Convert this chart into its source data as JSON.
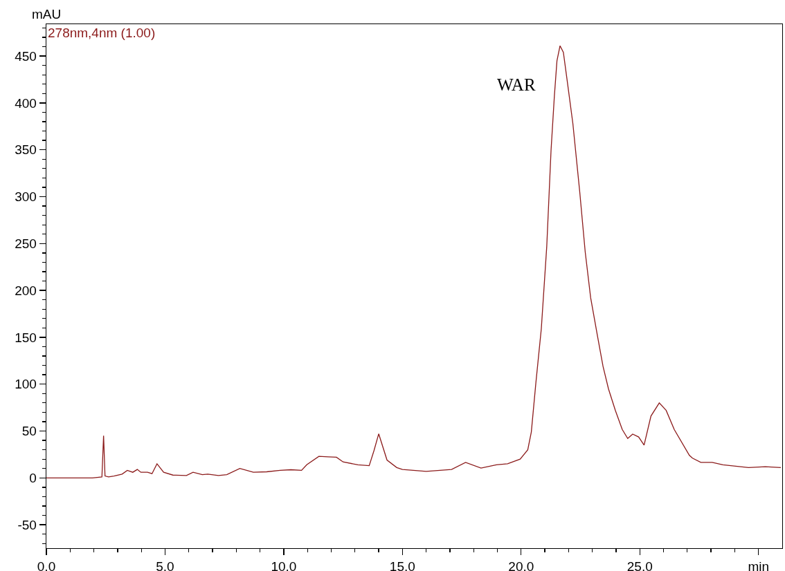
{
  "chart_data": {
    "type": "line",
    "ylabel": "mAU",
    "annotations": [
      "WAR"
    ],
    "series": [
      {
        "name": "278nm,4nm (1.00)",
        "color": "#8b1a1a",
        "x": [
          0,
          1.94,
          2.34,
          2.41,
          2.47,
          2.62,
          2.85,
          3.19,
          3.41,
          3.64,
          3.83,
          3.98,
          4.26,
          4.45,
          4.66,
          4.94,
          5.33,
          5.9,
          6.18,
          6.57,
          6.8,
          7.25,
          7.6,
          8.15,
          8.72,
          9.28,
          9.85,
          10.3,
          10.75,
          10.97,
          11.48,
          11.88,
          12.22,
          12.5,
          13.12,
          13.6,
          13.8,
          14.0,
          14.35,
          14.76,
          15.0,
          16.0,
          17.07,
          17.66,
          18.31,
          18.96,
          19.43,
          19.96,
          20.28,
          20.43,
          20.62,
          20.85,
          21.08,
          21.26,
          21.4,
          21.51,
          21.64,
          21.78,
          21.95,
          22.18,
          22.47,
          22.7,
          22.93,
          23.22,
          23.45,
          23.68,
          23.97,
          24.26,
          24.49,
          24.7,
          24.95,
          25.18,
          25.47,
          25.82,
          26.11,
          26.45,
          27.09,
          27.22,
          27.57,
          28.05,
          28.5,
          29.58,
          30.29,
          30.94
        ],
        "values": [
          0,
          0,
          1,
          45,
          2,
          1,
          2,
          4,
          8,
          6,
          9,
          6,
          6,
          4.5,
          15,
          6,
          3,
          2.5,
          6,
          3.5,
          4,
          2.5,
          3.5,
          10,
          6,
          6.5,
          8,
          8.7,
          8,
          14,
          23,
          22.5,
          22,
          17,
          14,
          13,
          29,
          47,
          19,
          11,
          9,
          7,
          9,
          16.5,
          10.5,
          14,
          15,
          20,
          30,
          49,
          101,
          159,
          247,
          349,
          407,
          445,
          461,
          454,
          422,
          378,
          305,
          241,
          192,
          151,
          119,
          95,
          72,
          51.6,
          42,
          46.7,
          43.7,
          35,
          66,
          80,
          72,
          51.6,
          24,
          21,
          16.5,
          16.5,
          14,
          11,
          12,
          11
        ]
      }
    ],
    "xlim": [
      0,
      31
    ],
    "xticks": [
      {
        "value": 0,
        "label": "0.0"
      },
      {
        "value": 1,
        "label": null
      },
      {
        "value": 2,
        "label": null
      },
      {
        "value": 3,
        "label": null
      },
      {
        "value": 4,
        "label": null
      },
      {
        "value": 5,
        "label": "5.0"
      },
      {
        "value": 6,
        "label": null
      },
      {
        "value": 7,
        "label": null
      },
      {
        "value": 8,
        "label": null
      },
      {
        "value": 9,
        "label": null
      },
      {
        "value": 10,
        "label": "10.0"
      },
      {
        "value": 11,
        "label": null
      },
      {
        "value": 12,
        "label": null
      },
      {
        "value": 13,
        "label": null
      },
      {
        "value": 14,
        "label": null
      },
      {
        "value": 15,
        "label": "15.0"
      },
      {
        "value": 16,
        "label": null
      },
      {
        "value": 17,
        "label": null
      },
      {
        "value": 18,
        "label": null
      },
      {
        "value": 19,
        "label": null
      },
      {
        "value": 20,
        "label": "20.0"
      },
      {
        "value": 21,
        "label": null
      },
      {
        "value": 22,
        "label": null
      },
      {
        "value": 23,
        "label": null
      },
      {
        "value": 24,
        "label": null
      },
      {
        "value": 25,
        "label": "25.0"
      },
      {
        "value": 26,
        "label": null
      },
      {
        "value": 27,
        "label": null
      },
      {
        "value": 28,
        "label": null
      },
      {
        "value": 29,
        "label": null
      },
      {
        "value": 30,
        "label": "min"
      }
    ],
    "ylim": [
      -75,
      484
    ],
    "yticks": [
      {
        "value": -70,
        "label": null
      },
      {
        "value": -60,
        "label": null
      },
      -50,
      {
        "value": -40,
        "label": null
      },
      {
        "value": -30,
        "label": null
      },
      {
        "value": -20,
        "label": null
      },
      {
        "value": -10,
        "label": null
      },
      0,
      {
        "value": 10,
        "label": null
      },
      {
        "value": 20,
        "label": null
      },
      {
        "value": 30,
        "label": null
      },
      {
        "value": 40,
        "label": null
      },
      50,
      {
        "value": 60,
        "label": null
      },
      {
        "value": 70,
        "label": null
      },
      {
        "value": 80,
        "label": null
      },
      {
        "value": 90,
        "label": null
      },
      100,
      {
        "value": 110,
        "label": null
      },
      {
        "value": 120,
        "label": null
      },
      {
        "value": 130,
        "label": null
      },
      {
        "value": 140,
        "label": null
      },
      150,
      {
        "value": 160,
        "label": null
      },
      {
        "value": 170,
        "label": null
      },
      {
        "value": 180,
        "label": null
      },
      {
        "value": 190,
        "label": null
      },
      200,
      {
        "value": 210,
        "label": null
      },
      {
        "value": 220,
        "label": null
      },
      {
        "value": 230,
        "label": null
      },
      {
        "value": 240,
        "label": null
      },
      250,
      {
        "value": 260,
        "label": null
      },
      {
        "value": 270,
        "label": null
      },
      {
        "value": 280,
        "label": null
      },
      {
        "value": 290,
        "label": null
      },
      300,
      {
        "value": 310,
        "label": null
      },
      {
        "value": 320,
        "label": null
      },
      {
        "value": 330,
        "label": null
      },
      {
        "value": 340,
        "label": null
      },
      350,
      {
        "value": 360,
        "label": null
      },
      {
        "value": 370,
        "label": null
      },
      {
        "value": 380,
        "label": null
      },
      {
        "value": 390,
        "label": null
      },
      400,
      {
        "value": 410,
        "label": null
      },
      {
        "value": 420,
        "label": null
      },
      {
        "value": 430,
        "label": null
      },
      {
        "value": 440,
        "label": null
      },
      450,
      {
        "value": 460,
        "label": null
      },
      {
        "value": 470,
        "label": null
      },
      {
        "value": 480,
        "label": null
      }
    ]
  }
}
